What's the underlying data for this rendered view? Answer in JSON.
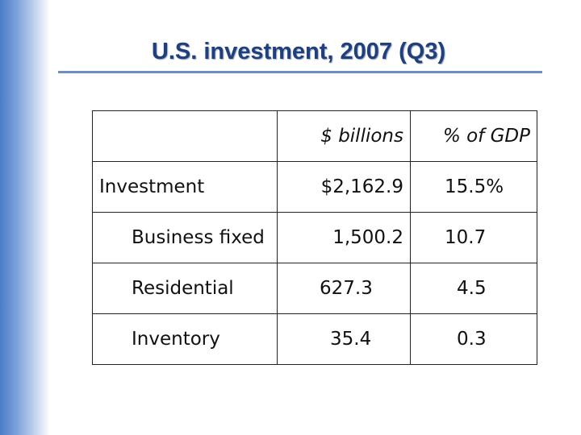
{
  "title": "U.S. investment, 2007 (Q3)",
  "table": {
    "headers": [
      "",
      "$ billions",
      "% of GDP"
    ],
    "rows": [
      {
        "label": "Investment",
        "billions": "$2,162.9",
        "gdp": "15.5%"
      },
      {
        "label": "Business fixed",
        "billions": "1,500.2",
        "gdp": "10.7"
      },
      {
        "label": "Residential",
        "billions": "627.3",
        "gdp": "4.5"
      },
      {
        "label": "Inventory",
        "billions": "35.4",
        "gdp": "0.3"
      }
    ]
  },
  "colors": {
    "title": "#1f3f7d",
    "rule": "#6f8fc4",
    "sidebar": "#4a7cc7"
  }
}
